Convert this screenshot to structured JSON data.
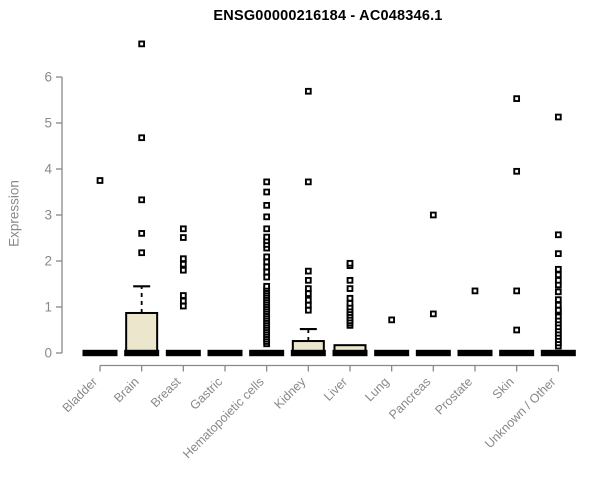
{
  "chart_data": {
    "type": "boxplot",
    "title": "ENSG00000216184 - AC048346.1",
    "ylabel": "Expression",
    "xlabel": "",
    "ylim": [
      0,
      6
    ],
    "yticks": [
      0,
      1,
      2,
      3,
      4,
      5,
      6
    ],
    "grid": false,
    "legend": null,
    "colors": {
      "box_fill": "#ece7cc",
      "box_stroke": "#000000",
      "median": "#000000",
      "outlier_stroke": "#000000",
      "outlier_fill": "#ffffff",
      "axis": "#898989",
      "tick_label": "#898989",
      "title": "#000000"
    },
    "categories": [
      "Bladder",
      "Brain",
      "Breast",
      "Gastric",
      "Hematopoietic cells",
      "Kidney",
      "Liver",
      "Lung",
      "Pancreas",
      "Prostate",
      "Skin",
      "Unknown / Other"
    ],
    "boxes": [
      {
        "category": "Bladder",
        "q1": 0,
        "median": 0,
        "q3": 0,
        "whisker_low": 0,
        "whisker_high": 0,
        "outliers": [
          3.75
        ]
      },
      {
        "category": "Brain",
        "q1": 0,
        "median": 0,
        "q3": 0.87,
        "whisker_low": 0,
        "whisker_high": 1.45,
        "outliers": [
          2.18,
          2.6,
          3.33,
          4.68,
          6.72
        ]
      },
      {
        "category": "Breast",
        "q1": 0,
        "median": 0,
        "q3": 0,
        "whisker_low": 0,
        "whisker_high": 0,
        "outliers": [
          1.02,
          1.13,
          1.25,
          1.8,
          1.93,
          2.05,
          2.51,
          2.7
        ]
      },
      {
        "category": "Gastric",
        "q1": 0,
        "median": 0,
        "q3": 0,
        "whisker_low": 0,
        "whisker_high": 0,
        "outliers": []
      },
      {
        "category": "Hematopoietic cells",
        "q1": 0,
        "median": 0,
        "q3": 0,
        "whisker_low": 0,
        "whisker_high": 0,
        "outliers": [
          0.2,
          0.25,
          0.3,
          0.35,
          0.4,
          0.45,
          0.5,
          0.55,
          0.6,
          0.65,
          0.7,
          0.75,
          0.8,
          0.85,
          0.9,
          0.95,
          1.0,
          1.05,
          1.1,
          1.15,
          1.2,
          1.25,
          1.3,
          1.35,
          1.4,
          1.45,
          1.65,
          1.76,
          1.87,
          1.98,
          2.09,
          2.28,
          2.36,
          2.44,
          2.52,
          2.7,
          2.96,
          3.21,
          3.5,
          3.72
        ]
      },
      {
        "category": "Kidney",
        "q1": 0,
        "median": 0,
        "q3": 0.26,
        "whisker_low": 0,
        "whisker_high": 0.52,
        "outliers": [
          0.93,
          1.04,
          1.15,
          1.29,
          1.4,
          1.58,
          1.78,
          3.72,
          5.69
        ]
      },
      {
        "category": "Liver",
        "q1": 0,
        "median": 0,
        "q3": 0.17,
        "whisker_low": 0,
        "whisker_high": 0.17,
        "outliers": [
          0.6,
          0.65,
          0.7,
          0.76,
          0.82,
          0.88,
          0.94,
          1.0,
          1.08,
          1.19,
          1.4,
          1.58,
          1.9,
          1.95
        ]
      },
      {
        "category": "Lung",
        "q1": 0,
        "median": 0,
        "q3": 0,
        "whisker_low": 0,
        "whisker_high": 0,
        "outliers": [
          0.72
        ]
      },
      {
        "category": "Pancreas",
        "q1": 0,
        "median": 0,
        "q3": 0,
        "whisker_low": 0,
        "whisker_high": 0,
        "outliers": [
          0.85,
          3.0
        ]
      },
      {
        "category": "Prostate",
        "q1": 0,
        "median": 0,
        "q3": 0,
        "whisker_low": 0,
        "whisker_high": 0,
        "outliers": [
          1.35
        ]
      },
      {
        "category": "Skin",
        "q1": 0,
        "median": 0,
        "q3": 0,
        "whisker_low": 0,
        "whisker_high": 0,
        "outliers": [
          0.5,
          1.35,
          3.95,
          5.53
        ]
      },
      {
        "category": "Unknown / Other",
        "q1": 0,
        "median": 0,
        "q3": 0,
        "whisker_low": 0,
        "whisker_high": 0,
        "outliers": [
          0.15,
          0.22,
          0.29,
          0.36,
          0.43,
          0.5,
          0.57,
          0.65,
          0.72,
          0.8,
          0.89,
          0.93,
          1.04,
          1.16,
          1.33,
          1.48,
          1.58,
          1.7,
          1.82,
          2.16,
          2.57,
          5.13
        ]
      }
    ]
  }
}
